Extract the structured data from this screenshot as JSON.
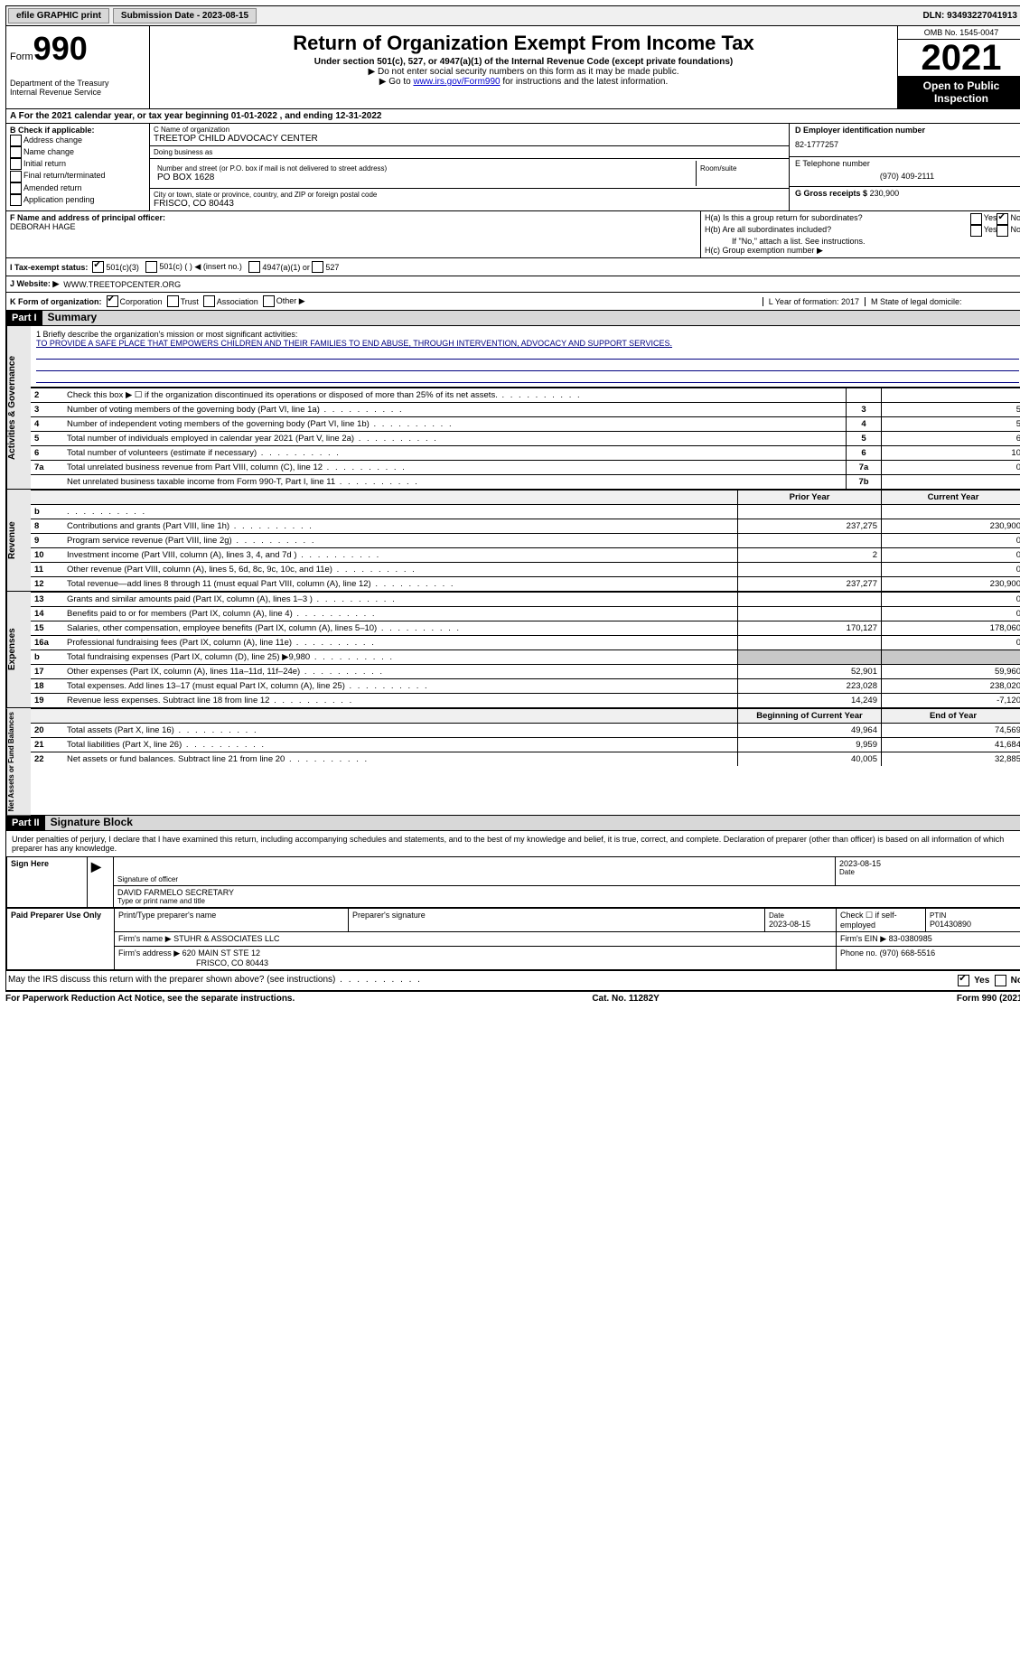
{
  "topbar": {
    "efile": "efile GRAPHIC print",
    "submission_label": "Submission Date - 2023-08-15",
    "dln": "DLN: 93493227041913"
  },
  "header": {
    "form_label": "Form",
    "form_number": "990",
    "title": "Return of Organization Exempt From Income Tax",
    "subtitle": "Under section 501(c), 527, or 4947(a)(1) of the Internal Revenue Code (except private foundations)",
    "note1": "▶ Do not enter social security numbers on this form as it may be made public.",
    "note2_pre": "▶ Go to ",
    "note2_link": "www.irs.gov/Form990",
    "note2_post": " for instructions and the latest information.",
    "dept": "Department of the Treasury\nInternal Revenue Service",
    "omb": "OMB No. 1545-0047",
    "year": "2021",
    "open": "Open to Public Inspection"
  },
  "lineA": "A For the 2021 calendar year, or tax year beginning 01-01-2022   , and ending 12-31-2022",
  "boxB": {
    "title": "B Check if applicable:",
    "opts": [
      "Address change",
      "Name change",
      "Initial return",
      "Final return/terminated",
      "Amended return",
      "Application pending"
    ]
  },
  "boxC": {
    "name_lbl": "C Name of organization",
    "name": "TREETOP CHILD ADVOCACY CENTER",
    "dba_lbl": "Doing business as",
    "dba": "",
    "addr_lbl": "Number and street (or P.O. box if mail is not delivered to street address)",
    "addr": "PO BOX 1628",
    "room_lbl": "Room/suite",
    "city_lbl": "City or town, state or province, country, and ZIP or foreign postal code",
    "city": "FRISCO, CO  80443"
  },
  "boxD": {
    "ein_lbl": "D Employer identification number",
    "ein": "82-1777257",
    "phone_lbl": "E Telephone number",
    "phone": "(970) 409-2111",
    "gross_lbl": "G Gross receipts $",
    "gross": "230,900"
  },
  "boxF": {
    "lbl": "F  Name and address of principal officer:",
    "name": "DEBORAH HAGE"
  },
  "boxH": {
    "a": "H(a)  Is this a group return for subordinates?",
    "b": "H(b)  Are all subordinates included?",
    "b_note": "If \"No,\" attach a list. See instructions.",
    "c": "H(c)  Group exemption number ▶",
    "yes": "Yes",
    "no": "No"
  },
  "lineI": {
    "lbl": "I   Tax-exempt status:",
    "o1": "501(c)(3)",
    "o2": " 501(c) (  ) ◀ (insert no.)",
    "o3": "4947(a)(1) or",
    "o4": "527"
  },
  "lineJ": {
    "lbl": "J   Website: ▶",
    "val": "WWW.TREETOPCENTER.ORG"
  },
  "lineK": {
    "lbl": "K Form of organization:",
    "opts": [
      "Corporation",
      "Trust",
      "Association",
      "Other ▶"
    ],
    "year_lbl": "L Year of formation: 2017",
    "state_lbl": "M State of legal domicile:"
  },
  "part1": {
    "hdr": "Part I",
    "title": "Summary"
  },
  "mission": {
    "q": "1  Briefly describe the organization's mission or most significant activities:",
    "text": "TO PROVIDE A SAFE PLACE THAT EMPOWERS CHILDREN AND THEIR FAMILIES TO END ABUSE, THROUGH INTERVENTION, ADVOCACY AND SUPPORT SERVICES."
  },
  "tabs": {
    "gov": "Activities & Governance",
    "rev": "Revenue",
    "exp": "Expenses",
    "net": "Net Assets or Fund Balances"
  },
  "gov_rows": [
    {
      "n": "2",
      "t": "Check this box ▶ ☐  if the organization discontinued its operations or disposed of more than 25% of its net assets.",
      "box": "",
      "v": ""
    },
    {
      "n": "3",
      "t": "Number of voting members of the governing body (Part VI, line 1a)",
      "box": "3",
      "v": "5"
    },
    {
      "n": "4",
      "t": "Number of independent voting members of the governing body (Part VI, line 1b)",
      "box": "4",
      "v": "5"
    },
    {
      "n": "5",
      "t": "Total number of individuals employed in calendar year 2021 (Part V, line 2a)",
      "box": "5",
      "v": "6"
    },
    {
      "n": "6",
      "t": "Total number of volunteers (estimate if necessary)",
      "box": "6",
      "v": "10"
    },
    {
      "n": "7a",
      "t": "Total unrelated business revenue from Part VIII, column (C), line 12",
      "box": "7a",
      "v": "0"
    },
    {
      "n": "",
      "t": "Net unrelated business taxable income from Form 990-T, Part I, line 11",
      "box": "7b",
      "v": ""
    }
  ],
  "py_hdr": "Prior Year",
  "cy_hdr": "Current Year",
  "rev_rows": [
    {
      "n": "b",
      "t": "",
      "p": "",
      "c": ""
    },
    {
      "n": "8",
      "t": "Contributions and grants (Part VIII, line 1h)",
      "p": "237,275",
      "c": "230,900"
    },
    {
      "n": "9",
      "t": "Program service revenue (Part VIII, line 2g)",
      "p": "",
      "c": "0"
    },
    {
      "n": "10",
      "t": "Investment income (Part VIII, column (A), lines 3, 4, and 7d )",
      "p": "2",
      "c": "0"
    },
    {
      "n": "11",
      "t": "Other revenue (Part VIII, column (A), lines 5, 6d, 8c, 9c, 10c, and 11e)",
      "p": "",
      "c": "0"
    },
    {
      "n": "12",
      "t": "Total revenue—add lines 8 through 11 (must equal Part VIII, column (A), line 12)",
      "p": "237,277",
      "c": "230,900"
    }
  ],
  "exp_rows": [
    {
      "n": "13",
      "t": "Grants and similar amounts paid (Part IX, column (A), lines 1–3 )",
      "p": "",
      "c": "0"
    },
    {
      "n": "14",
      "t": "Benefits paid to or for members (Part IX, column (A), line 4)",
      "p": "",
      "c": "0"
    },
    {
      "n": "15",
      "t": "Salaries, other compensation, employee benefits (Part IX, column (A), lines 5–10)",
      "p": "170,127",
      "c": "178,060"
    },
    {
      "n": "16a",
      "t": "Professional fundraising fees (Part IX, column (A), line 11e)",
      "p": "",
      "c": "0"
    },
    {
      "n": "b",
      "t": "Total fundraising expenses (Part IX, column (D), line 25) ▶9,980",
      "p": "shade",
      "c": "shade"
    },
    {
      "n": "17",
      "t": "Other expenses (Part IX, column (A), lines 11a–11d, 11f–24e)",
      "p": "52,901",
      "c": "59,960"
    },
    {
      "n": "18",
      "t": "Total expenses. Add lines 13–17 (must equal Part IX, column (A), line 25)",
      "p": "223,028",
      "c": "238,020"
    },
    {
      "n": "19",
      "t": "Revenue less expenses. Subtract line 18 from line 12",
      "p": "14,249",
      "c": "-7,120"
    }
  ],
  "boy_hdr": "Beginning of Current Year",
  "eoy_hdr": "End of Year",
  "net_rows": [
    {
      "n": "20",
      "t": "Total assets (Part X, line 16)",
      "p": "49,964",
      "c": "74,569"
    },
    {
      "n": "21",
      "t": "Total liabilities (Part X, line 26)",
      "p": "9,959",
      "c": "41,684"
    },
    {
      "n": "22",
      "t": "Net assets or fund balances. Subtract line 21 from line 20",
      "p": "40,005",
      "c": "32,885"
    }
  ],
  "part2": {
    "hdr": "Part II",
    "title": "Signature Block"
  },
  "sig_penalty": "Under penalties of perjury, I declare that I have examined this return, including accompanying schedules and statements, and to the best of my knowledge and belief, it is true, correct, and complete. Declaration of preparer (other than officer) is based on all information of which preparer has any knowledge.",
  "sign_here": "Sign Here",
  "sig_officer_lbl": "Signature of officer",
  "sig_date": "2023-08-15",
  "sig_date_lbl": "Date",
  "sig_name": "DAVID FARMELO  SECRETARY",
  "sig_name_lbl": "Type or print name and title",
  "paid": "Paid Preparer Use Only",
  "prep": {
    "name_lbl": "Print/Type preparer's name",
    "sig_lbl": "Preparer's signature",
    "date_lbl": "Date",
    "date": "2023-08-15",
    "check_lbl": "Check ☐ if self-employed",
    "ptin_lbl": "PTIN",
    "ptin": "P01430890",
    "firm_name_lbl": "Firm's name    ▶",
    "firm_name": "STUHR & ASSOCIATES LLC",
    "firm_ein_lbl": "Firm's EIN ▶",
    "firm_ein": "83-0380985",
    "firm_addr_lbl": "Firm's address ▶",
    "firm_addr": "620 MAIN ST STE 12",
    "firm_city": "FRISCO, CO  80443",
    "phone_lbl": "Phone no.",
    "phone": "(970) 668-5516"
  },
  "discuss": "May the IRS discuss this return with the preparer shown above? (see instructions)",
  "discuss_yes": "Yes",
  "discuss_no": "No",
  "paperwork": "For Paperwork Reduction Act Notice, see the separate instructions.",
  "cat": "Cat. No. 11282Y",
  "form_foot": "Form 990 (2021)"
}
